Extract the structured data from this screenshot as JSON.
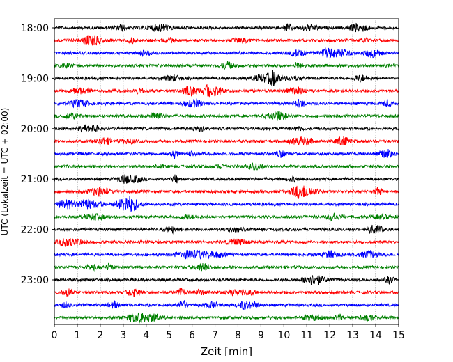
{
  "chart_data": {
    "type": "line",
    "title": "",
    "xlabel": "Zeit  [min]",
    "ylabel": "UTC (Lokalzeit = UTC + 02:00)",
    "xlim": [
      0,
      15
    ],
    "x_ticks": [
      "0",
      "1",
      "2",
      "3",
      "4",
      "5",
      "6",
      "7",
      "8",
      "9",
      "10",
      "11",
      "12",
      "13",
      "14",
      "15"
    ],
    "y_ticks": [
      "18:00",
      "19:00",
      "20:00",
      "21:00",
      "22:00",
      "23:00"
    ],
    "grid": "vertical dotted lines at each minute",
    "trace_interval_minutes": 15,
    "trace_colors_cycle": [
      "#000000",
      "#ff0000",
      "#0000ff",
      "#008000"
    ],
    "series": [
      {
        "start": "18:00",
        "color": "#000000"
      },
      {
        "start": "18:15",
        "color": "#ff0000"
      },
      {
        "start": "18:30",
        "color": "#0000ff"
      },
      {
        "start": "18:45",
        "color": "#008000"
      },
      {
        "start": "19:00",
        "color": "#000000"
      },
      {
        "start": "19:15",
        "color": "#ff0000"
      },
      {
        "start": "19:30",
        "color": "#0000ff"
      },
      {
        "start": "19:45",
        "color": "#008000"
      },
      {
        "start": "20:00",
        "color": "#000000"
      },
      {
        "start": "20:15",
        "color": "#ff0000"
      },
      {
        "start": "20:30",
        "color": "#0000ff"
      },
      {
        "start": "20:45",
        "color": "#008000"
      },
      {
        "start": "21:00",
        "color": "#000000"
      },
      {
        "start": "21:15",
        "color": "#ff0000"
      },
      {
        "start": "21:30",
        "color": "#0000ff"
      },
      {
        "start": "21:45",
        "color": "#008000"
      },
      {
        "start": "22:00",
        "color": "#000000"
      },
      {
        "start": "22:15",
        "color": "#ff0000"
      },
      {
        "start": "22:30",
        "color": "#0000ff"
      },
      {
        "start": "22:45",
        "color": "#008000"
      },
      {
        "start": "23:00",
        "color": "#000000"
      },
      {
        "start": "23:15",
        "color": "#ff0000"
      },
      {
        "start": "23:30",
        "color": "#0000ff"
      },
      {
        "start": "23:45",
        "color": "#008000"
      }
    ]
  }
}
